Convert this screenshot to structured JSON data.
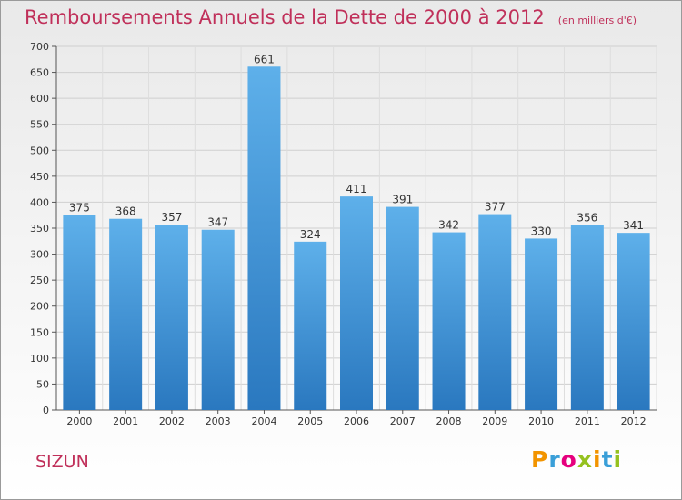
{
  "header": {
    "title": "Remboursements Annuels de la Dette de 2000 à 2012",
    "subtitle": "(en milliers d'€)"
  },
  "commune": "SIZUN",
  "brand": {
    "text": "Proxiti",
    "letters": [
      {
        "ch": "P",
        "color": "#f29400"
      },
      {
        "ch": "r",
        "color": "#3a9fd8"
      },
      {
        "ch": "o",
        "color": "#e6007e"
      },
      {
        "ch": "x",
        "color": "#95c11f"
      },
      {
        "ch": "i",
        "color": "#f29400"
      },
      {
        "ch": "t",
        "color": "#3a9fd8"
      },
      {
        "ch": "i",
        "color": "#95c11f"
      }
    ]
  },
  "chart_data": {
    "type": "bar",
    "categories": [
      "2000",
      "2001",
      "2002",
      "2003",
      "2004",
      "2005",
      "2006",
      "2007",
      "2008",
      "2009",
      "2010",
      "2011",
      "2012"
    ],
    "values": [
      375,
      368,
      357,
      347,
      661,
      324,
      411,
      391,
      342,
      377,
      330,
      356,
      341
    ],
    "title": "Remboursements Annuels de la Dette de 2000 à 2012",
    "subtitle": "(en milliers d'€)",
    "xlabel": "",
    "ylabel": "",
    "ylim": [
      0,
      700
    ],
    "yticks": [
      0,
      50,
      100,
      150,
      200,
      250,
      300,
      350,
      400,
      450,
      500,
      550,
      600,
      650,
      700
    ],
    "grid": true,
    "bar_color": "#3a8fd8"
  }
}
